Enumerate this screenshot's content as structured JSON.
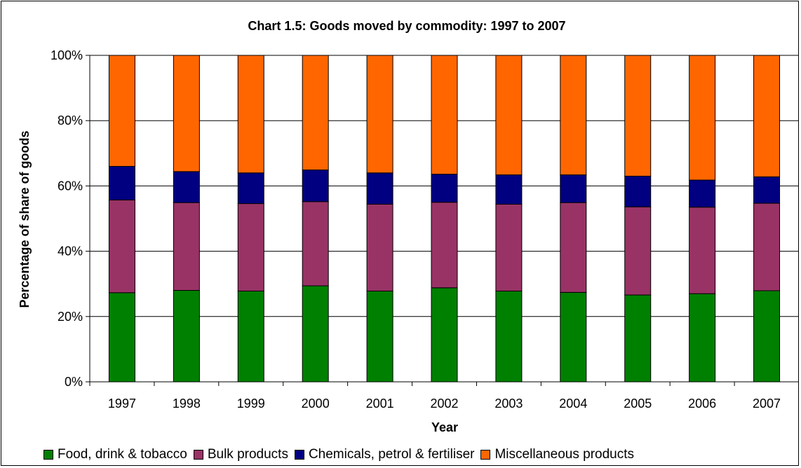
{
  "chart_data": {
    "type": "bar",
    "stacked": true,
    "title": "Chart 1.5: Goods moved by commodity: 1997 to 2007",
    "xlabel": "Year",
    "ylabel": "Percentage of share of goods",
    "ylim": [
      0,
      100
    ],
    "yticks": [
      "0%",
      "20%",
      "40%",
      "60%",
      "80%",
      "100%"
    ],
    "grid": true,
    "legend_position": "bottom",
    "categories": [
      "1997",
      "1998",
      "1999",
      "2000",
      "2001",
      "2002",
      "2003",
      "2004",
      "2005",
      "2006",
      "2007"
    ],
    "series": [
      {
        "name": "Food, drink & tobacco",
        "color": "#008000",
        "values": [
          27.3,
          28.0,
          27.8,
          29.4,
          27.8,
          28.8,
          27.8,
          27.4,
          26.6,
          27.0,
          27.9
        ]
      },
      {
        "name": "Bulk products",
        "color": "#993366",
        "values": [
          28.4,
          26.9,
          26.8,
          25.8,
          26.6,
          26.2,
          26.6,
          27.5,
          27.0,
          26.5,
          26.8
        ]
      },
      {
        "name": "Chemicals, petrol & fertiliser",
        "color": "#000080",
        "values": [
          10.3,
          9.5,
          9.4,
          9.7,
          9.6,
          8.6,
          9.0,
          8.5,
          9.4,
          8.3,
          8.1
        ]
      },
      {
        "name": "Miscellaneous products",
        "color": "#FF6600",
        "values": [
          34.0,
          35.6,
          36.0,
          35.1,
          36.0,
          36.4,
          36.6,
          36.6,
          37.0,
          38.2,
          37.2
        ]
      }
    ]
  }
}
